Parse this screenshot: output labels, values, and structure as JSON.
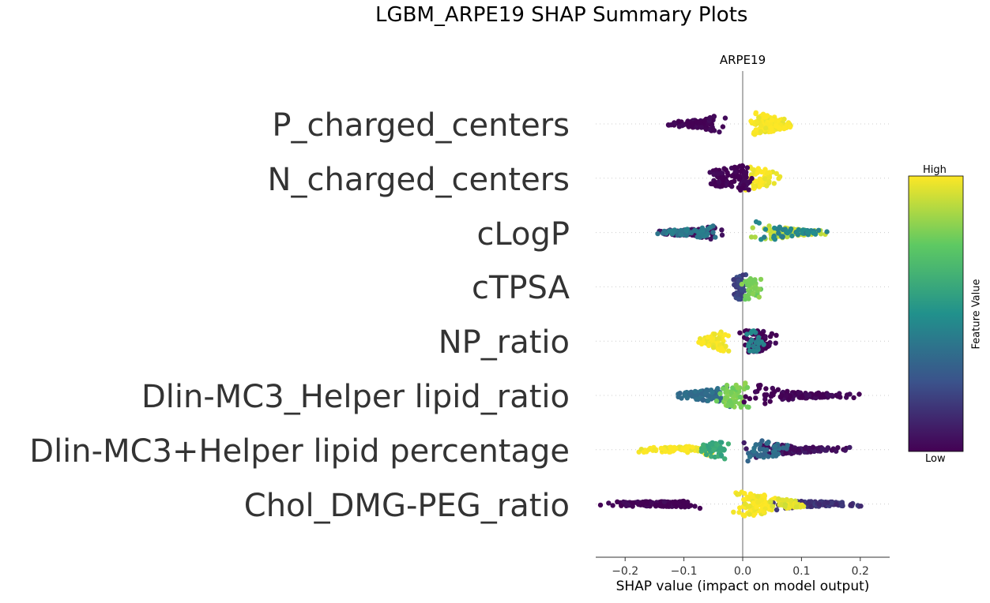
{
  "title": "LGBM_ARPE19 SHAP Summary Plots",
  "subplot_title": "ARPE19",
  "colorbar": {
    "high": "High",
    "low": "Low",
    "title": "Feature Value",
    "colors": [
      "#440154",
      "#3b528b",
      "#21918c",
      "#5ec962",
      "#fde725"
    ]
  },
  "chart_data": {
    "type": "scatter",
    "subtype": "shap-beeswarm",
    "xlabel": "SHAP value (impact on model output)",
    "xlim": [
      -0.25,
      0.25
    ],
    "xticks": [
      -0.2,
      -0.1,
      0.0,
      0.1,
      0.2
    ],
    "xtick_labels": [
      "−0.2",
      "−0.1",
      "0.0",
      "0.1",
      "0.2"
    ],
    "features": [
      {
        "name": "P_charged_centers",
        "segments": [
          {
            "min": -0.14,
            "max": -0.005,
            "v": 0.0,
            "n": 90
          },
          {
            "min": 0.0,
            "max": 0.09,
            "v": 1.0,
            "n": 130
          }
        ]
      },
      {
        "name": "N_charged_centers",
        "segments": [
          {
            "min": -0.07,
            "max": 0.005,
            "v": 0.0,
            "n": 55
          },
          {
            "min": -0.01,
            "max": 0.07,
            "v": 1.0,
            "n": 60
          },
          {
            "min": -0.02,
            "max": 0.02,
            "v": 0.0,
            "n": 40
          }
        ]
      },
      {
        "name": "cLogP",
        "segments": [
          {
            "min": -0.16,
            "max": -0.02,
            "v": 0.05,
            "n": 90
          },
          {
            "min": -0.16,
            "max": -0.02,
            "v": 0.4,
            "n": 60
          },
          {
            "min": 0.0,
            "max": 0.16,
            "v": 0.9,
            "n": 90
          },
          {
            "min": 0.0,
            "max": 0.16,
            "v": 0.45,
            "n": 45
          }
        ]
      },
      {
        "name": "cTPSA",
        "segments": [
          {
            "min": -0.02,
            "max": 0.01,
            "v": 0.2,
            "n": 50
          },
          {
            "min": -0.01,
            "max": 0.04,
            "v": 0.8,
            "n": 35
          }
        ]
      },
      {
        "name": "NP_ratio",
        "segments": [
          {
            "min": -0.09,
            "max": 0.0,
            "v": 1.0,
            "n": 60
          },
          {
            "min": -0.02,
            "max": 0.07,
            "v": 0.0,
            "n": 60
          },
          {
            "min": -0.01,
            "max": 0.05,
            "v": 0.45,
            "n": 25
          }
        ]
      },
      {
        "name": "Dlin-MC3_Helper lipid_ratio",
        "segments": [
          {
            "min": -0.13,
            "max": 0.0,
            "v": 0.35,
            "n": 80
          },
          {
            "min": -0.05,
            "max": 0.02,
            "v": 0.8,
            "n": 60
          },
          {
            "min": -0.03,
            "max": 0.23,
            "v": 0.0,
            "n": 120
          }
        ]
      },
      {
        "name": "Dlin-MC3+Helper lipid percentage",
        "segments": [
          {
            "min": -0.19,
            "max": -0.03,
            "v": 1.0,
            "n": 90
          },
          {
            "min": -0.09,
            "max": -0.01,
            "v": 0.6,
            "n": 60
          },
          {
            "min": -0.01,
            "max": 0.2,
            "v": 0.05,
            "n": 110
          },
          {
            "min": 0.0,
            "max": 0.08,
            "v": 0.35,
            "n": 50
          }
        ]
      },
      {
        "name": "Chol_DMG-PEG_ratio",
        "segments": [
          {
            "min": -0.25,
            "max": -0.05,
            "v": 0.0,
            "n": 140
          },
          {
            "min": -0.02,
            "max": 0.07,
            "v": 1.0,
            "n": 100
          },
          {
            "min": 0.04,
            "max": 0.22,
            "v": 0.15,
            "n": 120
          },
          {
            "min": 0.04,
            "max": 0.11,
            "v": 0.95,
            "n": 45
          }
        ]
      }
    ]
  }
}
